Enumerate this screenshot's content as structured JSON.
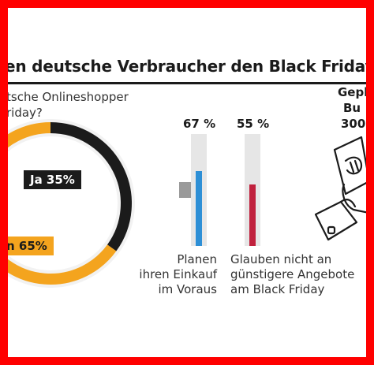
{
  "header": {
    "title": "en deutsche Verbraucher den Black Friday"
  },
  "question": {
    "line1": "tsche Onlineshopper",
    "line2": "riday?"
  },
  "colors": {
    "ja": "#1b1b1b",
    "nein": "#f4a41e",
    "bar_plan": "#2d8fd6",
    "bar_cheaper": "#c0213d",
    "track": "#e6e6e6",
    "frame": "#ff0000"
  },
  "chart_data": [
    {
      "type": "pie",
      "labels": [
        "Ja 35%",
        "n 65%"
      ],
      "values": [
        35,
        65
      ]
    },
    {
      "type": "bar",
      "categories": [
        "Planen ihren Einkauf im Voraus",
        "Glauben nicht an günstigere Angebote am Black Friday"
      ],
      "values": [
        67,
        55
      ],
      "value_labels": [
        "67 %",
        "55 %"
      ],
      "ylim": [
        0,
        100
      ],
      "caption_lines": [
        [
          "Planen",
          "ihren Einkauf",
          "im Voraus"
        ],
        [
          "Glauben nicht an",
          "günstigere Angebote",
          "am Black Friday"
        ]
      ]
    }
  ],
  "right_panel": {
    "line1": "Gepl",
    "line2": "Bu",
    "line3": "300"
  },
  "icons": {
    "hand": "hand-with-receipt-icon"
  }
}
